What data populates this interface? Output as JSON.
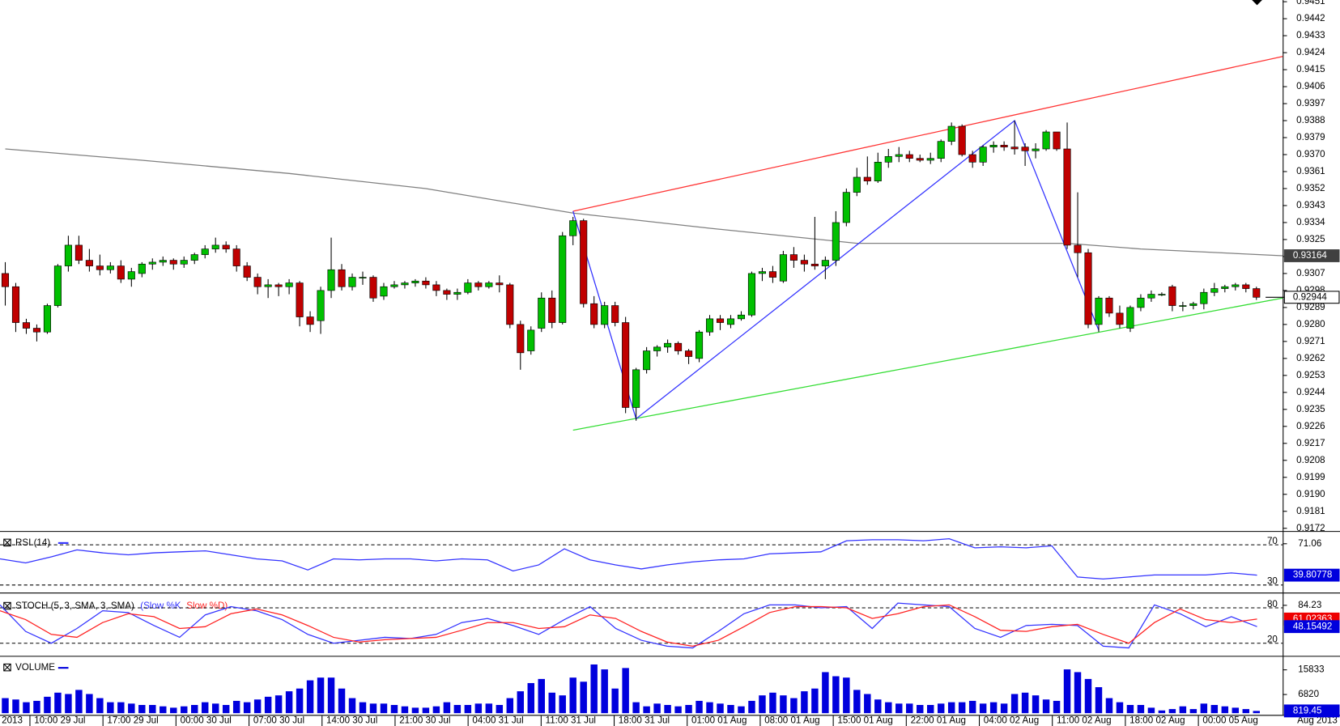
{
  "chart_data": {
    "type": "candlestick",
    "xlim": [
      -0.5,
      121.5
    ],
    "ylim": [
      0.9171,
      0.9451
    ],
    "yticks": [
      0.9451,
      0.9442,
      0.9433,
      0.9424,
      0.9415,
      0.9406,
      0.9397,
      0.9388,
      0.9379,
      {
        "value": 0.937,
        "label": "0.9370"
      },
      0.9361,
      0.9352,
      0.9343,
      0.9334,
      0.9325,
      0.9316,
      0.9307,
      0.9298,
      0.9289,
      {
        "value": 0.928,
        "label": "0.9280"
      },
      0.9271,
      0.9262,
      0.9253,
      0.9244,
      0.9235,
      0.9226,
      0.9217,
      0.9208,
      0.9199,
      {
        "value": 0.919,
        "label": "0.9190"
      },
      0.9181,
      0.9172
    ],
    "grid": false,
    "up_color": "#00c000",
    "down_color": "#c00000",
    "candles": [
      [
        0.9307,
        0.9313,
        0.929,
        0.93
      ],
      [
        0.93,
        0.9302,
        0.9276,
        0.9281
      ],
      [
        0.9281,
        0.9283,
        0.9275,
        0.9278
      ],
      [
        0.9278,
        0.928,
        0.9271,
        0.9276
      ],
      [
        0.9276,
        0.9291,
        0.9275,
        0.929
      ],
      [
        0.929,
        0.9312,
        0.9289,
        0.9311
      ],
      [
        0.9311,
        0.9327,
        0.9308,
        0.9322
      ],
      [
        0.9322,
        0.9327,
        0.9312,
        0.9314
      ],
      [
        0.9314,
        0.932,
        0.9308,
        0.9311
      ],
      [
        0.9311,
        0.9317,
        0.9306,
        0.9309
      ],
      [
        0.9309,
        0.9313,
        0.9307,
        0.9311
      ],
      [
        0.9311,
        0.9314,
        0.9302,
        0.9304
      ],
      [
        0.9304,
        0.931,
        0.93,
        0.9308
      ],
      [
        0.9307,
        0.9313,
        0.9305,
        0.9312
      ],
      [
        0.9312,
        0.9315,
        0.9309,
        0.9313
      ],
      [
        0.9313,
        0.9316,
        0.9311,
        0.9314
      ],
      [
        0.9314,
        0.9315,
        0.9309,
        0.9312
      ],
      [
        0.9312,
        0.9316,
        0.931,
        0.9314
      ],
      [
        0.9314,
        0.9318,
        0.9312,
        0.9317
      ],
      [
        0.9317,
        0.9322,
        0.9315,
        0.932
      ],
      [
        0.932,
        0.9326,
        0.9318,
        0.9322
      ],
      [
        0.9322,
        0.9324,
        0.9318,
        0.932
      ],
      [
        0.932,
        0.9322,
        0.9308,
        0.9311
      ],
      [
        0.9311,
        0.9313,
        0.9303,
        0.9305
      ],
      [
        0.9305,
        0.9307,
        0.9296,
        0.93
      ],
      [
        0.93,
        0.9304,
        0.9294,
        0.9301
      ],
      [
        0.9301,
        0.9302,
        0.9295,
        0.93
      ],
      [
        0.93,
        0.9304,
        0.9296,
        0.9302
      ],
      [
        0.9302,
        0.9303,
        0.9279,
        0.9284
      ],
      [
        0.9284,
        0.9287,
        0.9276,
        0.928
      ],
      [
        0.9282,
        0.93,
        0.9275,
        0.9298
      ],
      [
        0.9298,
        0.9326,
        0.9294,
        0.9309
      ],
      [
        0.9309,
        0.9312,
        0.9298,
        0.93
      ],
      [
        0.93,
        0.9307,
        0.9298,
        0.9305
      ],
      [
        0.9305,
        0.9308,
        0.9301,
        0.9305
      ],
      [
        0.9305,
        0.9306,
        0.9292,
        0.9294
      ],
      [
        0.9295,
        0.9302,
        0.9293,
        0.93
      ],
      [
        0.93,
        0.9303,
        0.9299,
        0.9301
      ],
      [
        0.9301,
        0.9303,
        0.9299,
        0.9302
      ],
      [
        0.9302,
        0.9304,
        0.93,
        0.9303
      ],
      [
        0.9303,
        0.9305,
        0.9299,
        0.9301
      ],
      [
        0.9301,
        0.9303,
        0.9295,
        0.9298
      ],
      [
        0.9298,
        0.9299,
        0.9293,
        0.9296
      ],
      [
        0.9296,
        0.9299,
        0.9293,
        0.9297
      ],
      [
        0.9297,
        0.9304,
        0.9296,
        0.9302
      ],
      [
        0.9302,
        0.9303,
        0.9298,
        0.93
      ],
      [
        0.93,
        0.9303,
        0.9299,
        0.9302
      ],
      [
        0.9302,
        0.9306,
        0.9297,
        0.9301
      ],
      [
        0.9301,
        0.9302,
        0.9278,
        0.928
      ],
      [
        0.928,
        0.9282,
        0.9256,
        0.9265
      ],
      [
        0.9266,
        0.9279,
        0.9264,
        0.9277
      ],
      [
        0.9278,
        0.9297,
        0.9276,
        0.9294
      ],
      [
        0.9294,
        0.9298,
        0.9278,
        0.9281
      ],
      [
        0.9281,
        0.9329,
        0.928,
        0.9327
      ],
      [
        0.9327,
        0.9337,
        0.9322,
        0.9335
      ],
      [
        0.9335,
        0.9336,
        0.9289,
        0.9291
      ],
      [
        0.9291,
        0.9295,
        0.9278,
        0.928
      ],
      [
        0.928,
        0.9292,
        0.9278,
        0.929
      ],
      [
        0.929,
        0.9292,
        0.9279,
        0.9281
      ],
      [
        0.9281,
        0.9284,
        0.9233,
        0.9236
      ],
      [
        0.9236,
        0.9257,
        0.9229,
        0.9256
      ],
      [
        0.9256,
        0.9268,
        0.9254,
        0.9266
      ],
      [
        0.9266,
        0.9269,
        0.9263,
        0.9268
      ],
      [
        0.9268,
        0.9272,
        0.9265,
        0.927
      ],
      [
        0.927,
        0.9271,
        0.9264,
        0.9266
      ],
      [
        0.9266,
        0.9267,
        0.9259,
        0.9263
      ],
      [
        0.9262,
        0.9277,
        0.926,
        0.9276
      ],
      [
        0.9276,
        0.9285,
        0.9274,
        0.9283
      ],
      [
        0.9283,
        0.9285,
        0.9277,
        0.9281
      ],
      [
        0.928,
        0.9285,
        0.9278,
        0.9283
      ],
      [
        0.9283,
        0.9287,
        0.9282,
        0.9285
      ],
      [
        0.9285,
        0.9308,
        0.9284,
        0.9307
      ],
      [
        0.9307,
        0.931,
        0.9303,
        0.9308
      ],
      [
        0.9308,
        0.9311,
        0.9302,
        0.9305
      ],
      [
        0.9303,
        0.9319,
        0.9302,
        0.9317
      ],
      [
        0.9317,
        0.9321,
        0.931,
        0.9314
      ],
      [
        0.9314,
        0.9317,
        0.9308,
        0.9312
      ],
      [
        0.9312,
        0.9337,
        0.9309,
        0.9311
      ],
      [
        0.9311,
        0.9316,
        0.9304,
        0.9314
      ],
      [
        0.9314,
        0.934,
        0.9311,
        0.9334
      ],
      [
        0.9334,
        0.9352,
        0.9332,
        0.935
      ],
      [
        0.935,
        0.9363,
        0.9348,
        0.9358
      ],
      [
        0.9358,
        0.9369,
        0.9354,
        0.9356
      ],
      [
        0.9356,
        0.9371,
        0.9355,
        0.9366
      ],
      [
        0.9366,
        0.9373,
        0.9363,
        0.9369
      ],
      [
        0.9369,
        0.9374,
        0.9366,
        0.937
      ],
      [
        0.937,
        0.9372,
        0.9366,
        0.9368
      ],
      [
        0.9368,
        0.937,
        0.9366,
        0.9367
      ],
      [
        0.9367,
        0.9371,
        0.9365,
        0.9368
      ],
      [
        0.9368,
        0.9378,
        0.9366,
        0.9377
      ],
      [
        0.9377,
        0.9387,
        0.9375,
        0.9385
      ],
      [
        0.9385,
        0.9386,
        0.9369,
        0.937
      ],
      [
        0.937,
        0.9372,
        0.9363,
        0.9366
      ],
      [
        0.9366,
        0.9375,
        0.9364,
        0.9374
      ],
      [
        0.9374,
        0.9377,
        0.9371,
        0.9375
      ],
      [
        0.9375,
        0.9377,
        0.9372,
        0.9374
      ],
      [
        0.9374,
        0.9388,
        0.937,
        0.9373
      ],
      [
        0.9374,
        0.9376,
        0.9364,
        0.9372
      ],
      [
        0.9372,
        0.9376,
        0.9368,
        0.9373
      ],
      [
        0.9373,
        0.9383,
        0.9372,
        0.9382
      ],
      [
        0.9382,
        0.9382,
        0.9372,
        0.9373
      ],
      [
        0.9373,
        0.9387,
        0.932,
        0.9322
      ],
      [
        0.9322,
        0.935,
        0.9305,
        0.9318
      ],
      [
        0.9318,
        0.932,
        0.9278,
        0.928
      ],
      [
        0.928,
        0.9295,
        0.9276,
        0.9294
      ],
      [
        0.9294,
        0.9295,
        0.9284,
        0.9286
      ],
      [
        0.9286,
        0.929,
        0.9278,
        0.928
      ],
      [
        0.9278,
        0.929,
        0.9276,
        0.9289
      ],
      [
        0.9289,
        0.9296,
        0.9287,
        0.9294
      ],
      [
        0.9294,
        0.9298,
        0.9292,
        0.9296
      ],
      [
        0.9296,
        0.9297,
        0.9295,
        0.9296
      ],
      [
        0.93,
        0.9301,
        0.9287,
        0.929
      ],
      [
        0.929,
        0.9292,
        0.9287,
        0.929
      ],
      [
        0.929,
        0.9292,
        0.9288,
        0.9291
      ],
      [
        0.9291,
        0.9299,
        0.9288,
        0.9297
      ],
      [
        0.9297,
        0.9302,
        0.9295,
        0.9299
      ],
      [
        0.9299,
        0.9301,
        0.9297,
        0.93
      ],
      [
        0.93,
        0.9302,
        0.9298,
        0.9301
      ],
      [
        0.9301,
        0.9302,
        0.9297,
        0.9299
      ],
      [
        0.9299,
        0.93,
        0.9293,
        0.92944
      ]
    ],
    "overlays": [
      {
        "color": "#808080",
        "points": [
          [
            0,
            0.9373
          ],
          [
            13,
            0.9367
          ],
          [
            27,
            0.936
          ],
          [
            40,
            0.9352
          ],
          [
            54,
            0.9339
          ],
          [
            67,
            0.9331
          ],
          [
            81,
            0.9323
          ],
          [
            94,
            0.9323
          ],
          [
            101,
            0.9323
          ],
          [
            108,
            0.932
          ],
          [
            121.5,
            0.93164
          ]
        ]
      },
      {
        "color": "#ff3333",
        "points": [
          [
            54,
            0.934
          ],
          [
            121.5,
            0.9422
          ]
        ]
      },
      {
        "color": "#33dd33",
        "points": [
          [
            54,
            0.9224
          ],
          [
            121.5,
            0.9294
          ]
        ]
      },
      {
        "color": "#3333ff",
        "points": [
          [
            54,
            0.934
          ],
          [
            60,
            0.923
          ],
          [
            96,
            0.9388
          ],
          [
            104,
            0.9277
          ]
        ]
      }
    ],
    "time_labels": [
      "2013",
      "10:00 29 Jul",
      "17:00 29 Jul",
      "00:00 30 Jul",
      "07:00 30 Jul",
      "14:00 30 Jul",
      "21:00 30 Jul",
      "04:00 31 Jul",
      "11:00 31 Jul",
      "18:00 31 Jul",
      "01:00 01 Aug",
      "08:00 01 Aug",
      "15:00 01 Aug",
      "22:00 01 Aug",
      "04:00 02 Aug",
      "11:00 02 Aug",
      "18:00 02 Aug",
      "00:00 05 Aug",
      "Aug 2013"
    ],
    "rsi": {
      "title": "RSI (14)",
      "color": "#3333ff",
      "ylim": [
        25,
        82
      ],
      "yticks": [
        71.06
      ],
      "levels": [
        70,
        30
      ],
      "values": [
        56,
        52,
        58,
        65,
        62,
        60,
        62,
        63,
        64,
        60,
        56,
        54,
        45,
        56,
        55,
        56,
        56,
        54,
        56,
        55,
        44,
        50,
        66,
        55,
        50,
        46,
        50,
        53,
        55,
        56,
        61,
        62,
        63,
        74,
        75,
        75,
        74,
        76,
        67,
        68,
        67,
        69,
        38,
        36,
        38,
        40,
        40,
        40,
        42,
        39.80778
      ]
    },
    "stoch": {
      "title": "STOCH (5, 3, SMA, 3, SMA)",
      "ylim": [
        0,
        100
      ],
      "yticks": [
        84.23
      ],
      "levels": [
        80,
        20
      ],
      "series": [
        {
          "name": "(Slow %K",
          "color": "#3333ff",
          "values": [
            85,
            40,
            20,
            45,
            75,
            72,
            50,
            30,
            68,
            82,
            75,
            60,
            35,
            20,
            25,
            30,
            28,
            35,
            55,
            62,
            50,
            35,
            60,
            82,
            45,
            25,
            15,
            12,
            40,
            70,
            85,
            85,
            80,
            82,
            45,
            88,
            85,
            82,
            45,
            30,
            50,
            52,
            50,
            15,
            12,
            85,
            70,
            48,
            65,
            48.15492
          ]
        },
        {
          "name": "Slow %D)",
          "color": "#ff2222",
          "values": [
            75,
            60,
            35,
            30,
            55,
            70,
            65,
            45,
            48,
            70,
            78,
            68,
            50,
            30,
            22,
            26,
            28,
            30,
            42,
            55,
            55,
            45,
            48,
            68,
            62,
            40,
            22,
            15,
            25,
            48,
            72,
            82,
            82,
            80,
            62,
            70,
            82,
            85,
            65,
            42,
            40,
            48,
            52,
            35,
            20,
            55,
            78,
            60,
            55,
            61.02363
          ]
        }
      ]
    },
    "volume": {
      "title": "VOLUME",
      "color": "#0000dd",
      "ylim": [
        0,
        20000
      ],
      "yticks": [
        15833,
        6820
      ],
      "values": [
        5500,
        5000,
        4000,
        4500,
        6000,
        7500,
        7000,
        8500,
        7000,
        5500,
        4000,
        4000,
        3500,
        3000,
        3000,
        2500,
        2000,
        2500,
        3000,
        4000,
        3500,
        3000,
        4500,
        4000,
        5000,
        6000,
        6500,
        8000,
        9000,
        12000,
        13000,
        13000,
        9000,
        5500,
        4000,
        3500,
        3500,
        3000,
        2500,
        2000,
        2000,
        2500,
        4000,
        3000,
        3000,
        3500,
        3500,
        3000,
        5500,
        8000,
        11000,
        12500,
        7500,
        6500,
        13000,
        11500,
        17800,
        16000,
        9000,
        16500,
        4000,
        2500,
        3500,
        3000,
        2500,
        3000,
        4500,
        4000,
        3500,
        3000,
        2500,
        4500,
        6500,
        7500,
        6500,
        5500,
        8000,
        9000,
        15000,
        13500,
        13000,
        8500,
        7000,
        5000,
        4000,
        3500,
        3500,
        3000,
        3000,
        3500,
        4000,
        4000,
        4500,
        3500,
        4000,
        3500,
        7000,
        7500,
        6500,
        5000,
        4500,
        16000,
        15000,
        12500,
        9500,
        5500,
        4000,
        3000,
        3000,
        2000,
        1000,
        1500,
        2500,
        1500,
        3500,
        3000,
        2500,
        2000,
        1500,
        819.45
      ]
    }
  }
}
